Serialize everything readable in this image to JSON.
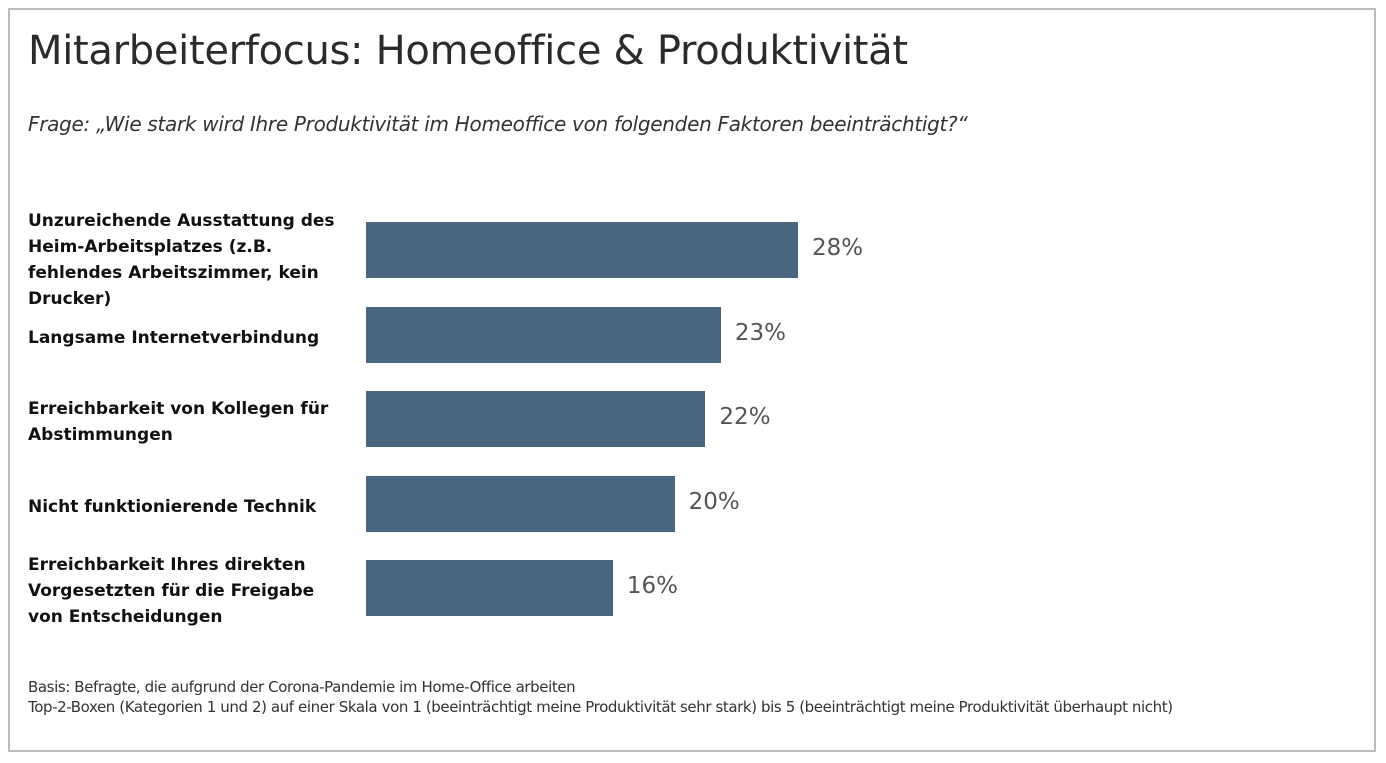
{
  "title": "Mitarbeiterfocus: Homeoffice & Produktivität",
  "subtitle": "Frage: „Wie stark wird Ihre Produktivität im Homeoffice von folgenden Faktoren beeinträchtigt?“",
  "chart_data": {
    "type": "bar",
    "orientation": "horizontal",
    "categories": [
      "Unzureichende Ausstattung des Heim-Arbeitsplatzes (z.B. fehlendes Arbeitszimmer, kein Drucker)",
      "Langsame Internetverbindung",
      "Erreichbarkeit von Kollegen für Abstimmungen",
      "Nicht funktionierende Technik",
      "Erreichbarkeit Ihres direkten Vorgesetzten für die Freigabe von Entscheidungen"
    ],
    "values": [
      28,
      23,
      22,
      20,
      16
    ],
    "value_labels": [
      "28%",
      "23%",
      "22%",
      "20%",
      "16%"
    ],
    "unit": "%",
    "bar_color": "#4a6580",
    "grid": false,
    "legend": "none"
  },
  "footnotes": {
    "basis": "Basis: Befragte, die aufgrund der Corona-Pandemie im Home-Office arbeiten",
    "scale": "Top-2-Boxen (Kategorien 1 und 2) auf einer Skala von 1 (beeinträchtigt meine Produktivität sehr stark) bis 5 (beeinträchtigt meine Produktivität überhaupt nicht)"
  }
}
